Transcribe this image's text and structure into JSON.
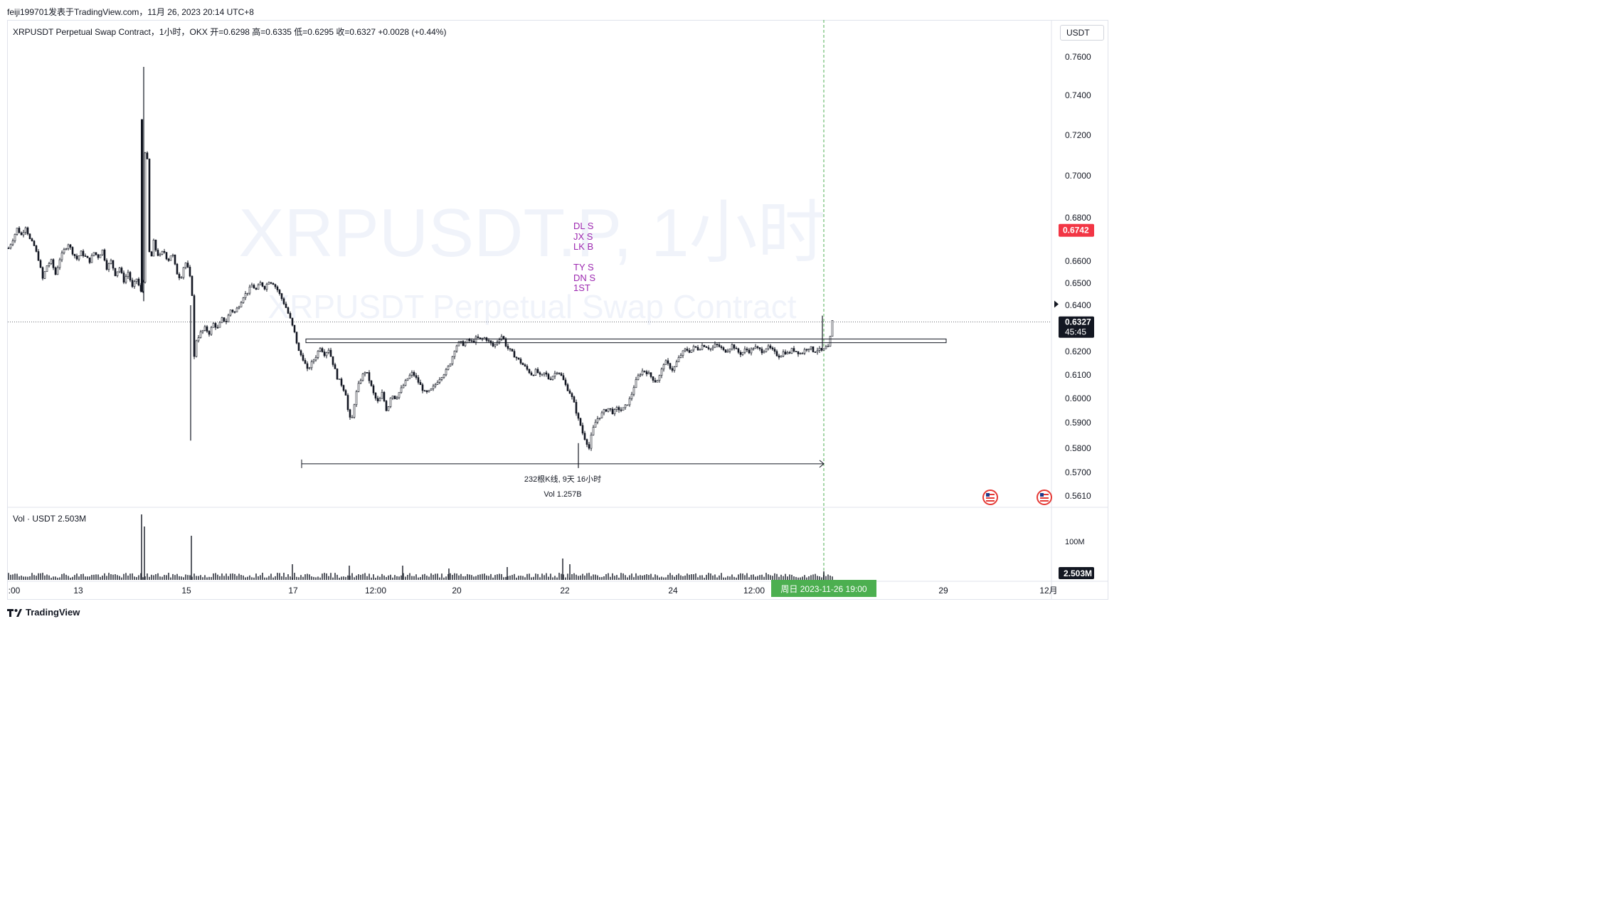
{
  "caption": "feiji199701发表于TradingView.com，11月 26, 2023 20:14 UTC+8",
  "legend": "XRPUSDT Perpetual Swap Contract，1小时，OKX  开=0.6298  高=0.6335  低=0.6295  收=0.6327  +0.0028 (+0.44%)",
  "currency": "USDT",
  "watermark": {
    "line1": "XRPUSDT.P, 1小时",
    "line2": "XRPUSDT Perpetual Swap Contract"
  },
  "vol_legend": "Vol · USDT  2.503M",
  "footer": {
    "logo_text": "TradingView"
  },
  "colors": {
    "up": "#131722",
    "down": "#131722",
    "price_label_bg": "#131722",
    "alert_label_bg": "#f23645",
    "time_label_bg": "#4caf50",
    "annotation_text": "#9c27b0",
    "crosshair": "#4caf50"
  },
  "chart_data": {
    "type": "candlestick",
    "symbol": "XRPUSDT.P",
    "interval": "1小时",
    "exchange": "OKX",
    "ohlc": {
      "open": 0.6298,
      "high": 0.6335,
      "low": 0.6295,
      "close": 0.6327,
      "change": "+0.0028",
      "change_pct": "+0.44%"
    },
    "ylim": [
      0.566,
      0.764
    ],
    "y_ticks": [
      "0.7600",
      "0.7400",
      "0.7200",
      "0.7000",
      "0.6800",
      "0.6600",
      "0.6500",
      "0.6400",
      "0.6200",
      "0.6100",
      "0.6000",
      "0.5900",
      "0.5800",
      "0.5700",
      "0.5610"
    ],
    "x_ticks": [
      ":00",
      "13",
      "15",
      "17",
      "12:00",
      "20",
      "22",
      "24",
      "12:00",
      "29",
      "12月"
    ],
    "current_price": {
      "value": 0.6327,
      "label": "0.6327",
      "countdown": "45:45"
    },
    "alert_price": {
      "value": 0.6742,
      "label": "0.6742"
    },
    "crosshair_time": "周日 2023-11-26  19:00",
    "resistance_zone": {
      "top": 0.6254,
      "bottom": 0.6238
    },
    "measure": {
      "low_price": 0.5718,
      "text_bars": "232根K线, 9天 16小时",
      "text_vol": "Vol 1.257B"
    },
    "annotations": [
      "DL S",
      "JX S",
      "LK B",
      "TY S",
      "DN S",
      "1ST"
    ],
    "path": [
      [
        0,
        0.666
      ],
      [
        6,
        0.67
      ],
      [
        12,
        0.675
      ],
      [
        18,
        0.672
      ],
      [
        24,
        0.676
      ],
      [
        30,
        0.67
      ],
      [
        36,
        0.667
      ],
      [
        42,
        0.661
      ],
      [
        48,
        0.652
      ],
      [
        54,
        0.658
      ],
      [
        60,
        0.66
      ],
      [
        66,
        0.654
      ],
      [
        72,
        0.661
      ],
      [
        78,
        0.665
      ],
      [
        84,
        0.668
      ],
      [
        90,
        0.664
      ],
      [
        96,
        0.661
      ],
      [
        102,
        0.664
      ],
      [
        108,
        0.662
      ],
      [
        114,
        0.66
      ],
      [
        120,
        0.664
      ],
      [
        126,
        0.662
      ],
      [
        132,
        0.665
      ],
      [
        138,
        0.657
      ],
      [
        144,
        0.66
      ],
      [
        150,
        0.654
      ],
      [
        156,
        0.657
      ],
      [
        162,
        0.651
      ],
      [
        168,
        0.655
      ],
      [
        174,
        0.648
      ],
      [
        180,
        0.652
      ],
      [
        186,
        0.646
      ],
      [
        190,
        0.652
      ],
      [
        192,
        0.712
      ],
      [
        194,
        0.725
      ],
      [
        196,
        0.69
      ],
      [
        198,
        0.664
      ],
      [
        200,
        0.66
      ],
      [
        204,
        0.669
      ],
      [
        208,
        0.664
      ],
      [
        212,
        0.662
      ],
      [
        218,
        0.665
      ],
      [
        224,
        0.66
      ],
      [
        230,
        0.664
      ],
      [
        236,
        0.655
      ],
      [
        242,
        0.652
      ],
      [
        248,
        0.66
      ],
      [
        254,
        0.655
      ],
      [
        258,
        0.645
      ],
      [
        260,
        0.615
      ],
      [
        264,
        0.625
      ],
      [
        270,
        0.628
      ],
      [
        276,
        0.63
      ],
      [
        282,
        0.628
      ],
      [
        288,
        0.632
      ],
      [
        294,
        0.63
      ],
      [
        300,
        0.634
      ],
      [
        306,
        0.633
      ],
      [
        312,
        0.638
      ],
      [
        318,
        0.637
      ],
      [
        324,
        0.64
      ],
      [
        330,
        0.644
      ],
      [
        336,
        0.646
      ],
      [
        342,
        0.649
      ],
      [
        348,
        0.647
      ],
      [
        354,
        0.65
      ],
      [
        360,
        0.648
      ],
      [
        366,
        0.651
      ],
      [
        372,
        0.65
      ],
      [
        378,
        0.647
      ],
      [
        384,
        0.643
      ],
      [
        390,
        0.639
      ],
      [
        396,
        0.634
      ],
      [
        402,
        0.628
      ],
      [
        408,
        0.62
      ],
      [
        414,
        0.617
      ],
      [
        420,
        0.612
      ],
      [
        426,
        0.615
      ],
      [
        432,
        0.618
      ],
      [
        438,
        0.622
      ],
      [
        444,
        0.619
      ],
      [
        450,
        0.621
      ],
      [
        456,
        0.615
      ],
      [
        462,
        0.609
      ],
      [
        468,
        0.606
      ],
      [
        474,
        0.602
      ],
      [
        478,
        0.593
      ],
      [
        482,
        0.59
      ],
      [
        486,
        0.598
      ],
      [
        490,
        0.604
      ],
      [
        496,
        0.609
      ],
      [
        502,
        0.612
      ],
      [
        508,
        0.607
      ],
      [
        514,
        0.601
      ],
      [
        520,
        0.598
      ],
      [
        526,
        0.603
      ],
      [
        530,
        0.595
      ],
      [
        534,
        0.597
      ],
      [
        538,
        0.602
      ],
      [
        544,
        0.6
      ],
      [
        550,
        0.603
      ],
      [
        556,
        0.606
      ],
      [
        562,
        0.609
      ],
      [
        568,
        0.611
      ],
      [
        574,
        0.608
      ],
      [
        580,
        0.605
      ],
      [
        586,
        0.602
      ],
      [
        592,
        0.603
      ],
      [
        598,
        0.605
      ],
      [
        604,
        0.608
      ],
      [
        610,
        0.61
      ],
      [
        616,
        0.612
      ],
      [
        622,
        0.616
      ],
      [
        628,
        0.622
      ],
      [
        634,
        0.624
      ],
      [
        640,
        0.623
      ],
      [
        646,
        0.625
      ],
      [
        652,
        0.624
      ],
      [
        658,
        0.626
      ],
      [
        664,
        0.625
      ],
      [
        670,
        0.626
      ],
      [
        676,
        0.624
      ],
      [
        682,
        0.622
      ],
      [
        688,
        0.625
      ],
      [
        694,
        0.627
      ],
      [
        700,
        0.622
      ],
      [
        706,
        0.62
      ],
      [
        712,
        0.618
      ],
      [
        718,
        0.616
      ],
      [
        724,
        0.614
      ],
      [
        730,
        0.612
      ],
      [
        736,
        0.61
      ],
      [
        742,
        0.612
      ],
      [
        748,
        0.609
      ],
      [
        754,
        0.611
      ],
      [
        760,
        0.608
      ],
      [
        766,
        0.61
      ],
      [
        772,
        0.612
      ],
      [
        778,
        0.609
      ],
      [
        784,
        0.605
      ],
      [
        790,
        0.602
      ],
      [
        796,
        0.597
      ],
      [
        800,
        0.592
      ],
      [
        804,
        0.589
      ],
      [
        808,
        0.585
      ],
      [
        812,
        0.583
      ],
      [
        816,
        0.58
      ],
      [
        820,
        0.586
      ],
      [
        826,
        0.591
      ],
      [
        832,
        0.593
      ],
      [
        838,
        0.595
      ],
      [
        844,
        0.596
      ],
      [
        850,
        0.594
      ],
      [
        856,
        0.596
      ],
      [
        862,
        0.595
      ],
      [
        868,
        0.597
      ],
      [
        874,
        0.6
      ],
      [
        880,
        0.606
      ],
      [
        886,
        0.61
      ],
      [
        892,
        0.612
      ],
      [
        898,
        0.611
      ],
      [
        904,
        0.609
      ],
      [
        910,
        0.607
      ],
      [
        916,
        0.61
      ],
      [
        922,
        0.616
      ],
      [
        928,
        0.614
      ],
      [
        934,
        0.612
      ],
      [
        940,
        0.616
      ],
      [
        946,
        0.619
      ],
      [
        952,
        0.621
      ],
      [
        958,
        0.62
      ],
      [
        964,
        0.622
      ],
      [
        970,
        0.621
      ],
      [
        976,
        0.623
      ],
      [
        982,
        0.622
      ],
      [
        988,
        0.621
      ],
      [
        994,
        0.623
      ],
      [
        1000,
        0.622
      ],
      [
        1006,
        0.62
      ],
      [
        1012,
        0.621
      ],
      [
        1018,
        0.623
      ],
      [
        1024,
        0.62
      ],
      [
        1030,
        0.619
      ],
      [
        1036,
        0.621
      ],
      [
        1042,
        0.62
      ],
      [
        1048,
        0.622
      ],
      [
        1054,
        0.621
      ],
      [
        1060,
        0.62
      ],
      [
        1066,
        0.622
      ],
      [
        1072,
        0.621
      ],
      [
        1078,
        0.619
      ],
      [
        1084,
        0.618
      ],
      [
        1090,
        0.62
      ],
      [
        1096,
        0.619
      ],
      [
        1102,
        0.621
      ],
      [
        1108,
        0.62
      ],
      [
        1114,
        0.619
      ],
      [
        1120,
        0.621
      ],
      [
        1126,
        0.622
      ],
      [
        1132,
        0.62
      ],
      [
        1138,
        0.621
      ],
      [
        1144,
        0.62
      ],
      [
        1150,
        0.622
      ],
      [
        1154,
        0.621
      ],
      [
        1156,
        0.631
      ],
      [
        1158,
        0.633
      ],
      [
        1160,
        0.6327
      ]
    ]
  }
}
